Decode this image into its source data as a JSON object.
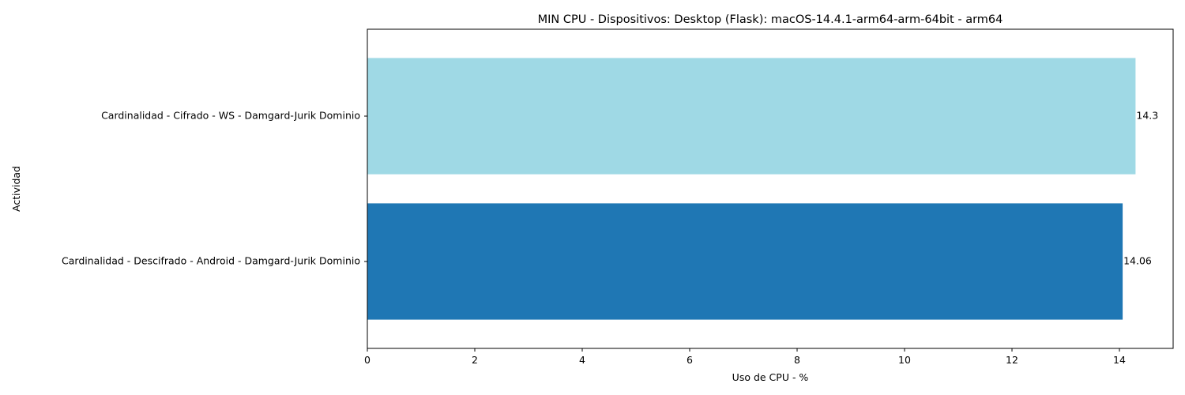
{
  "chart_data": {
    "type": "bar",
    "orientation": "horizontal",
    "title": "MIN CPU - Dispositivos: Desktop (Flask): macOS-14.4.1-arm64-arm-64bit - arm64",
    "xlabel": "Uso de CPU - %",
    "ylabel": "Actividad",
    "xlim": [
      0,
      15
    ],
    "xticks": [
      "0",
      "2",
      "4",
      "6",
      "8",
      "10",
      "12",
      "14"
    ],
    "grid": false,
    "bars": [
      {
        "category": "Cardinalidad - Cifrado - WS - Damgard-Jurik Dominio",
        "value": 14.3,
        "label": "14.3",
        "color": "#9fd9e5"
      },
      {
        "category": "Cardinalidad - Descifrado - Android - Damgard-Jurik Dominio",
        "value": 14.06,
        "label": "14.06",
        "color": "#1f77b4"
      }
    ]
  }
}
